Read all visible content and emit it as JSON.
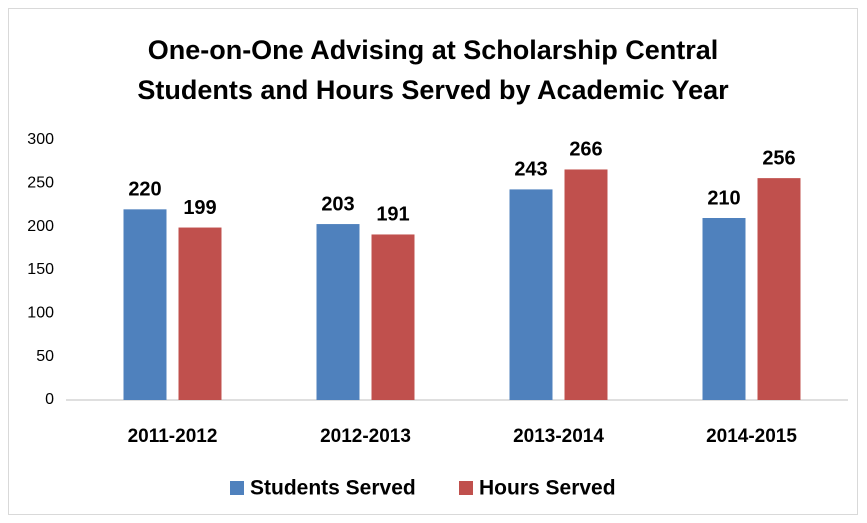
{
  "chart_data": {
    "type": "bar",
    "title": "One-on-One Advising at Scholarship Central",
    "subtitle": "Students and Hours Served by Academic Year",
    "categories": [
      "2011-2012",
      "2012-2013",
      "2013-2014",
      "2014-2015"
    ],
    "series": [
      {
        "name": "Students Served",
        "color": "#4f81bd",
        "values": [
          220,
          203,
          243,
          210
        ]
      },
      {
        "name": "Hours Served",
        "color": "#c0504d",
        "values": [
          199,
          191,
          266,
          256
        ]
      }
    ],
    "ylim": [
      0,
      300
    ],
    "yticks": [
      0,
      50,
      100,
      150,
      200,
      250,
      300
    ],
    "grid": false,
    "legend": "bottom"
  }
}
